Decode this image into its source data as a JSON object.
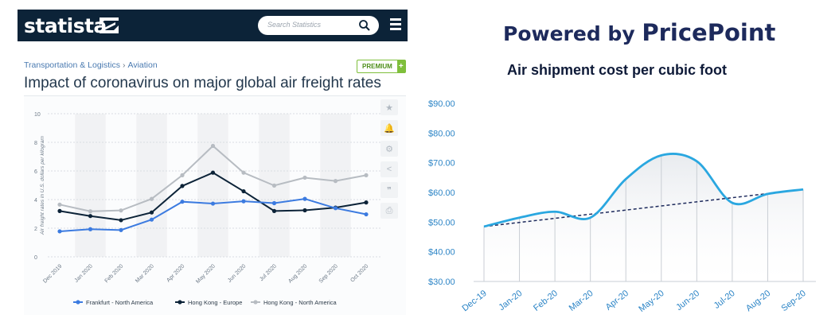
{
  "statista": {
    "logo_text": "statista",
    "search_placeholder": "Search Statistics",
    "breadcrumb": [
      "Transportation & Logistics",
      "Aviation"
    ],
    "breadcrumb_sep": "›",
    "premium_label": "PREMIUM",
    "premium_plus": "+",
    "title": "Impact of coronavirus on major global air freight rates",
    "colors": {
      "header": "#0c2338",
      "accent_link": "#4a7ab0",
      "premium": "#7fbf3b"
    },
    "toolbar_icons": [
      "star-icon",
      "bell-icon",
      "gear-icon",
      "share-icon",
      "quote-icon",
      "print-icon"
    ],
    "toolbar_glyphs": [
      "★",
      "🔔",
      "⚙",
      "<",
      "❞",
      "⎙"
    ]
  },
  "pricepoint": {
    "powered_by": "Powered by ",
    "brand": "PricePoint",
    "title": "Air shipment cost per cubic foot",
    "colors": {
      "brand": "#1d2a5c",
      "line": "#2aa7e0",
      "trend": "#1d2a5c"
    }
  },
  "chart_data": [
    {
      "type": "line",
      "title": "",
      "ylabel": "Air freight rates in U.S. dollars per kilogram",
      "xlabel": "",
      "x": [
        "Dec 2019",
        "Jan 2020",
        "Feb 2020",
        "Mar 2020",
        "Apr 2020",
        "May 2020",
        "Jun 2020",
        "Jul 2020",
        "Aug 2020",
        "Sep 2020",
        "Oct 2020"
      ],
      "yticks": [
        0,
        2,
        4,
        6,
        8,
        10
      ],
      "ylim": [
        0,
        10
      ],
      "grid": true,
      "legend_position": "bottom",
      "series": [
        {
          "name": "Frankfurt - North America",
          "color": "#3c7be0",
          "values": [
            1.78,
            1.93,
            1.87,
            2.6,
            3.85,
            3.72,
            3.88,
            3.75,
            4.05,
            3.4,
            2.97
          ]
        },
        {
          "name": "Hong Kong - Europe",
          "color": "#0c2338",
          "values": [
            3.2,
            2.85,
            2.56,
            3.1,
            4.95,
            5.88,
            4.58,
            3.2,
            3.25,
            3.44,
            3.8
          ]
        },
        {
          "name": "Hong Kong - North America",
          "color": "#b7bcc2",
          "values": [
            3.65,
            3.18,
            3.24,
            4.05,
            5.7,
            7.75,
            5.88,
            4.98,
            5.53,
            5.3,
            5.7
          ]
        }
      ]
    },
    {
      "type": "area",
      "title": "Air shipment cost per cubic foot",
      "xlabel": "",
      "ylabel": "",
      "x": [
        "Dec-19",
        "Jan-20",
        "Feb-20",
        "Mar-20",
        "Apr-20",
        "May-20",
        "Jun-20",
        "Jul-20",
        "Aug-20",
        "Sep-20"
      ],
      "yticks": [
        "$30.00",
        "$40.00",
        "$50.00",
        "$60.00",
        "$70.00",
        "$80.00",
        "$90.00"
      ],
      "ylim": [
        30,
        90
      ],
      "grid": false,
      "series": [
        {
          "name": "",
          "color": "#2aa7e0",
          "values": [
            48.5,
            51.5,
            53.5,
            51.5,
            64.5,
            72.5,
            70.5,
            56.5,
            59.5,
            61.0
          ]
        }
      ],
      "trendline": {
        "start": 48.5,
        "end": 61.0,
        "style": "dashed"
      }
    }
  ]
}
